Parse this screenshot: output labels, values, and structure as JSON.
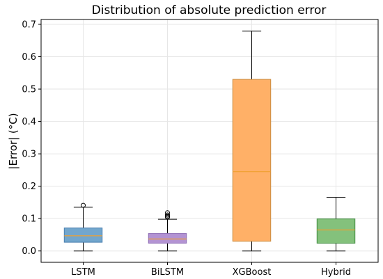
{
  "chart_data": {
    "type": "box",
    "title": "Distribution of absolute prediction error",
    "xlabel": "",
    "ylabel": "|Error| (°C)",
    "ylim": [
      -0.035,
      0.715
    ],
    "yticks": [
      0.0,
      0.1,
      0.2,
      0.3,
      0.4,
      0.5,
      0.6,
      0.7
    ],
    "ytick_labels": [
      "0.0",
      "0.1",
      "0.2",
      "0.3",
      "0.4",
      "0.5",
      "0.6",
      "0.7"
    ],
    "grid": true,
    "categories": [
      "LSTM",
      "BiLSTM",
      "XGBoost",
      "Hybrid"
    ],
    "series": [
      {
        "whisker_low": 0.0,
        "q1": 0.027,
        "median": 0.047,
        "q3": 0.071,
        "whisker_high": 0.135,
        "outliers": [
          0.141
        ],
        "fill": "#72a6cd",
        "edge": "#4a7fb0"
      },
      {
        "whisker_low": 0.0,
        "q1": 0.024,
        "median": 0.037,
        "q3": 0.054,
        "whisker_high": 0.098,
        "outliers": [
          0.104,
          0.107,
          0.111,
          0.118
        ],
        "fill": "#b393d3",
        "edge": "#8f6fb5"
      },
      {
        "whisker_low": 0.0,
        "q1": 0.03,
        "median": 0.245,
        "q3": 0.53,
        "whisker_high": 0.679,
        "outliers": [],
        "fill": "#ffb067",
        "edge": "#c98a3c"
      },
      {
        "whisker_low": 0.0,
        "q1": 0.024,
        "median": 0.065,
        "q3": 0.099,
        "whisker_high": 0.166,
        "outliers": [],
        "fill": "#84c17c",
        "edge": "#3f8b3f"
      }
    ],
    "median_color": "#f0a030"
  }
}
